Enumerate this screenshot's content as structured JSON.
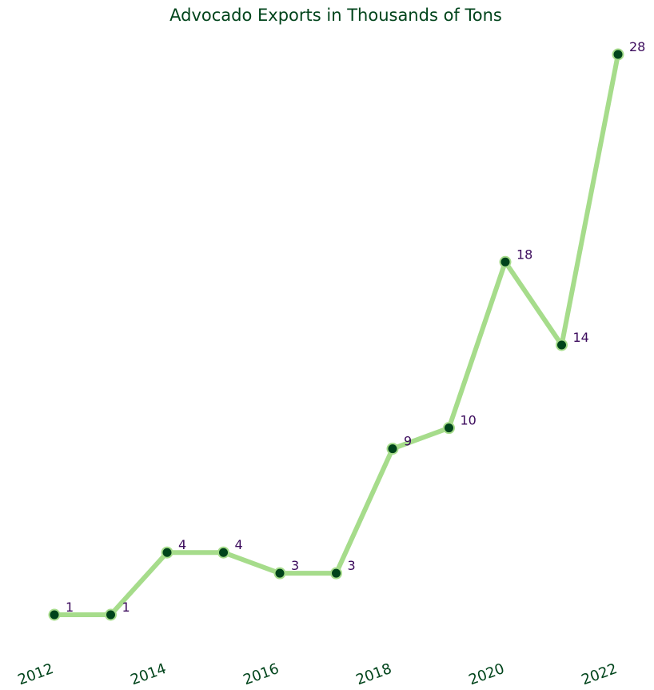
{
  "chart_data": {
    "type": "line",
    "title": "Advocado Exports in Thousands of Tons",
    "xlabel": "",
    "ylabel": "",
    "x": [
      2012,
      2013,
      2014,
      2015,
      2016,
      2017,
      2018,
      2019,
      2020,
      2021,
      2022
    ],
    "series": [
      {
        "values": [
          1,
          1,
          4,
          4,
          3,
          3,
          9,
          10,
          18,
          14,
          28
        ]
      }
    ],
    "xticks": [
      2012,
      2014,
      2016,
      2018,
      2020,
      2022
    ],
    "xlim": [
      2012,
      2022
    ],
    "ylim": [
      1,
      28
    ],
    "grid": false,
    "y_axis_visible": false,
    "data_labels": true,
    "colors": {
      "line": "#a6dc8b",
      "marker_fill": "#00441b",
      "marker_edge": "#a6dc8b",
      "title": "#00441b",
      "tick_labels": "#00441b",
      "data_labels": "#3b0a5c"
    }
  }
}
